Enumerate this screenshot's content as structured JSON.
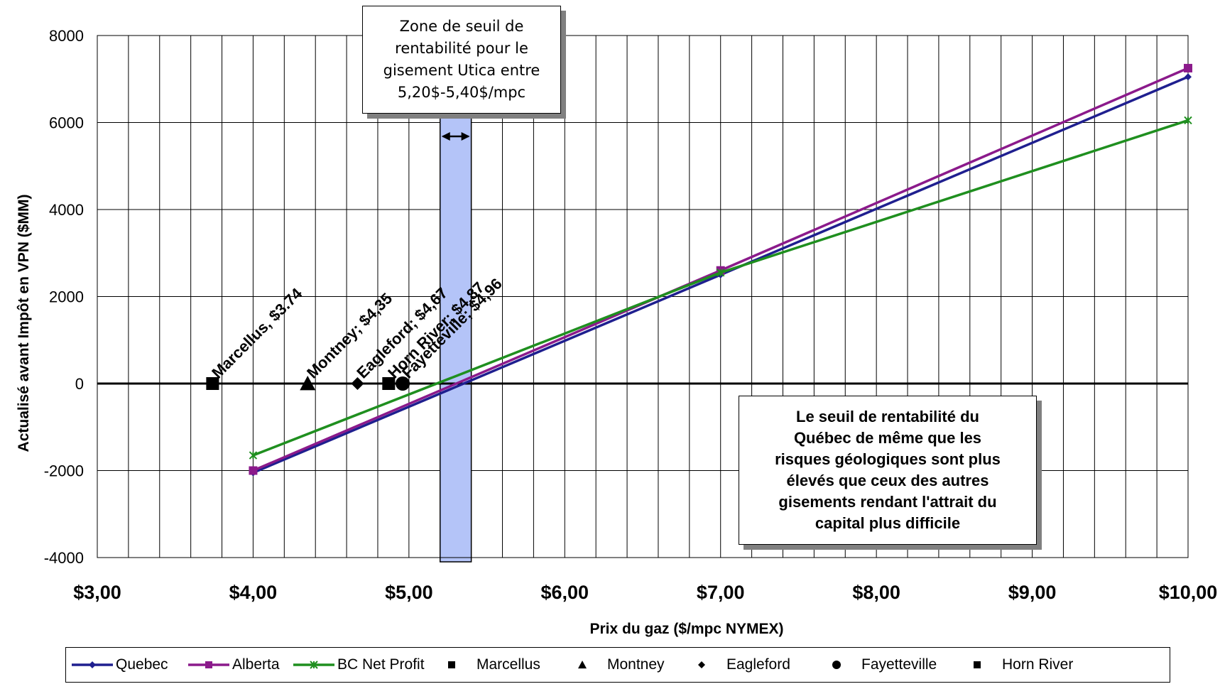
{
  "chart_data": {
    "type": "line",
    "xlabel": "Prix du gaz ($/mpc NYMEX)",
    "ylabel": "Actualisé avant Impôt en VPN ($MM)",
    "xlim": [
      3,
      10
    ],
    "ylim": [
      -4000,
      8000
    ],
    "x_ticks": [
      3,
      4,
      5,
      6,
      7,
      8,
      9,
      10
    ],
    "x_tick_labels": [
      "$3,00",
      "$4,00",
      "$5,00",
      "$6,00",
      "$7,00",
      "$8,00",
      "$9,00",
      "$10,00"
    ],
    "y_ticks": [
      -4000,
      -2000,
      0,
      2000,
      4000,
      6000,
      8000
    ],
    "y_tick_labels": [
      "-4000",
      "-2000",
      "0",
      "2000",
      "4000",
      "6000",
      "8000"
    ],
    "x_minor_step": 0.2,
    "grid": true,
    "legend_position": "bottom",
    "series": [
      {
        "name": "Quebec",
        "color": "#1F1F8F",
        "marker": "diamond",
        "x": [
          4,
          7,
          10
        ],
        "y": [
          -2050,
          2500,
          7050
        ]
      },
      {
        "name": "Alberta",
        "color": "#8B1A8B",
        "marker": "square",
        "x": [
          4,
          7,
          10
        ],
        "y": [
          -2000,
          2600,
          7250
        ]
      },
      {
        "name": "BC Net Profit",
        "color": "#1F8F1F",
        "marker": "star",
        "x": [
          4,
          7,
          10
        ],
        "y": [
          -1650,
          2550,
          6050
        ]
      }
    ],
    "points": [
      {
        "name": "Marcellus",
        "label": "Marcellus, $3.74",
        "x": 3.74,
        "y": 0,
        "marker": "square"
      },
      {
        "name": "Montney",
        "label": "Montney;  $4,35",
        "x": 4.35,
        "y": 0,
        "marker": "triangle"
      },
      {
        "name": "Eagleford",
        "label": "Eagleford;  $4,67",
        "x": 4.67,
        "y": 0,
        "marker": "diamond"
      },
      {
        "name": "Fayetteville",
        "label": "Fayetteville;  $4,96",
        "x": 4.96,
        "y": 0,
        "marker": "circle"
      },
      {
        "name": "Horn River",
        "label": "Horn River;  $4,87",
        "x": 4.87,
        "y": 0,
        "marker": "square"
      }
    ],
    "band": {
      "x0": 5.2,
      "x1": 5.4,
      "color": "#B4C4F8"
    },
    "annotations": [
      "Zone de seuil de\nrentabilité pour le\ngisement Utica entre\n5,20$-5,40$/mpc",
      "Le seuil de rentabilité du\nQuébec de même que les\nrisques géologiques sont plus\nélevés que ceux des autres\ngisements rendant l'attrait du\ncapital plus difficile"
    ]
  }
}
